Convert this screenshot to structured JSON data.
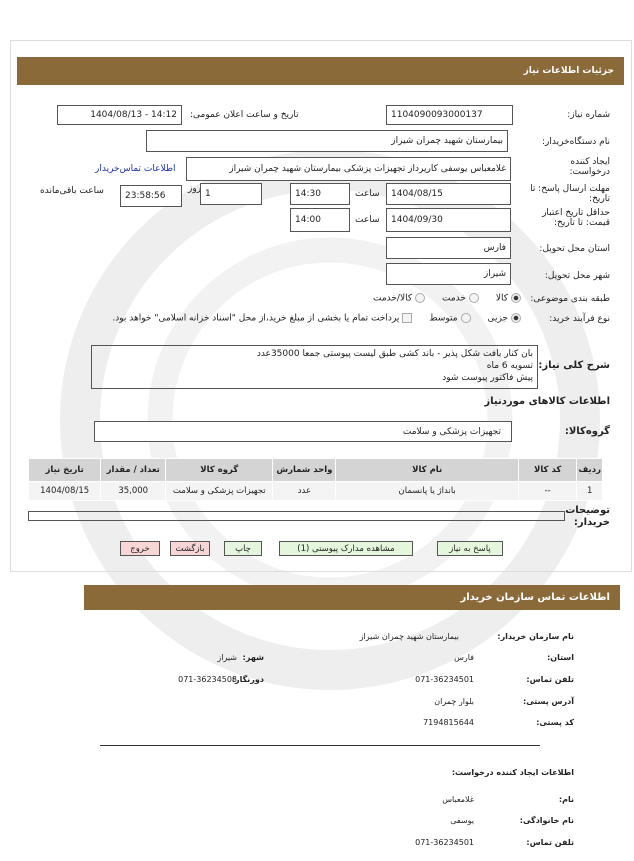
{
  "header": {
    "title": "جزئیات اطلاعات نیاز"
  },
  "fields": {
    "need_number_label": "شماره نیاز:",
    "need_number": "1104090093000137",
    "announce_label": "تاریخ و ساعت اعلان عمومی:",
    "announce_value": "1404/08/13 - 14:12",
    "buyer_label": "نام دستگاه‌خریدار:",
    "buyer": "بیمارستان شهید چمران شیراز",
    "creator_label": "ایجاد کننده درخواست:",
    "creator": "غلامعباس یوسفی کارپرداز تجهیزات پزشکی بیمارستان شهید چمران شیراز",
    "contact_link": "اطلاعات تماس‌خریدار",
    "deadline_label": "مهلت ارسال پاسخ: تا تاریخ:",
    "deadline_date": "1404/08/15",
    "time_label": "ساعت",
    "deadline_time": "14:30",
    "days": "1",
    "days_label": "روز",
    "remaining": "23:58:56",
    "remaining_label": "ساعت باقی‌مانده",
    "validity_label": "حداقل تاریخ اعتبار قیمت: تا تاریخ:",
    "validity_date": "1404/09/30",
    "validity_time": "14:00",
    "province_label": "استان محل تحویل:",
    "province": "فارس",
    "city_label": "شهر محل تحویل:",
    "city": "شیراز",
    "category_label": "طبقه بندی موضوعی:",
    "category_options": [
      "کالا",
      "خدمت",
      "کالا/خدمت"
    ],
    "process_label": "نوع فرآیند خرید:",
    "process_options": [
      "جزیی",
      "متوسط"
    ],
    "payment_note": "پرداخت تمام یا بخشی از مبلغ خرید،از محل \"اسناد خزانه اسلامی\" خواهد بود.",
    "desc_label": "شرح کلی نیاز:",
    "desc_lines": [
      "بان کنار بافت شکل پذیر - باند کشی طبق لیست پیوستی جمعا 35000عدد",
      "تسویه 6 ماه",
      "پیش فاکتور پیوست شود"
    ],
    "goods_title": "اطلاعات کالاهای موردنیاز",
    "group_label": "گروه‌کالا:",
    "group": "تجهیزات پزشکی و سلامت",
    "notes_label": "توضیحات خریدار:"
  },
  "table": {
    "headers": [
      "ردیف",
      "کد کالا",
      "نام کالا",
      "واحد شمارش",
      "گروه کالا",
      "تعداد / مقدار",
      "تاریخ نیاز"
    ],
    "rows": [
      [
        "1",
        "--",
        "بانداژ یا پانسمان",
        "عدد",
        "تجهیزات پزشکی و سلامت",
        "35,000",
        "1404/08/15"
      ]
    ]
  },
  "buttons": {
    "reply": "پاسخ به نیاز",
    "attachments": "مشاهده مدارک پیوستی (1)",
    "print": "چاپ",
    "back": "بازگشت",
    "exit": "خروج"
  },
  "contact": {
    "title": "اطلاعات تماس سازمان خریدار",
    "org_label": "نام سازمان خریدار:",
    "org": "بیمارستان شهید چمران شیراز",
    "province_label": "استان:",
    "province": "فارس",
    "city_label": "شهر:",
    "city": "شیراز",
    "phone_label": "تلفن تماس:",
    "phone": "071-36234501",
    "fax_label": "دورنگار:",
    "fax": "071-36234508",
    "address_label": "آدرس پستی:",
    "address": "بلوار چمران",
    "postal_label": "کد پستی:",
    "postal": "7194815644",
    "creator_title": "اطلاعات ایجاد کننده درخواست:",
    "name_label": "نام:",
    "name": "غلامعباس",
    "family_label": "نام خانوادگی:",
    "family": "یوسفی",
    "cphone_label": "تلفن تماس:",
    "cphone": "071-36234501"
  }
}
